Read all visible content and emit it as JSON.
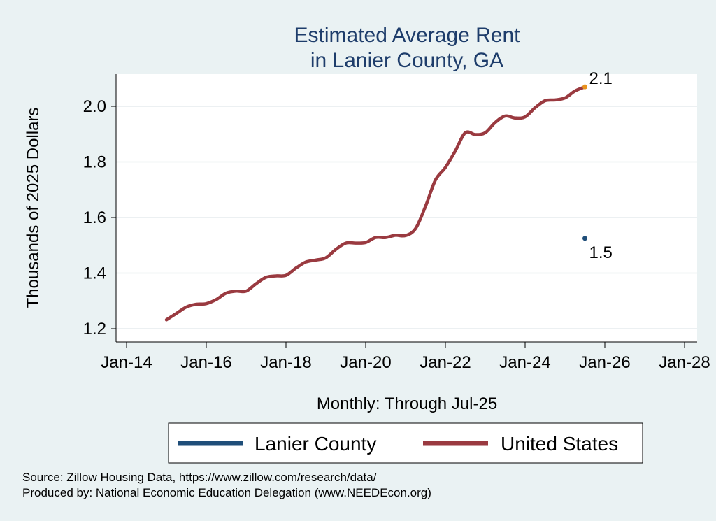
{
  "chart_data": {
    "type": "line",
    "title": [
      "Estimated Average Rent",
      "in Lanier County, GA"
    ],
    "xlabel": "Monthly: Through Jul-25",
    "ylabel": "Thousands of 2025 Dollars",
    "x_ticks": [
      "Jan-14",
      "Jan-16",
      "Jan-18",
      "Jan-20",
      "Jan-22",
      "Jan-24",
      "Jan-26",
      "Jan-28"
    ],
    "y_ticks": [
      "1.2",
      "1.4",
      "1.6",
      "1.8",
      "2.0"
    ],
    "xlim": [
      "Jan-14",
      "Jan-28"
    ],
    "ylim": [
      1.18,
      2.12
    ],
    "grid": "horizontal",
    "legend_position": "bottom",
    "series": [
      {
        "name": "Lanier County",
        "color": "#1f4e79",
        "points": [
          [
            "Jul-25",
            1.525
          ]
        ],
        "end_label": "1.5"
      },
      {
        "name": "United States",
        "color": "#9a3a40",
        "end_marker_color": "#e8921d",
        "end_label": "2.1",
        "points": [
          [
            "Jan-15",
            1.232
          ],
          [
            "Apr-15",
            1.255
          ],
          [
            "Jul-15",
            1.278
          ],
          [
            "Oct-15",
            1.288
          ],
          [
            "Jan-16",
            1.29
          ],
          [
            "Apr-16",
            1.305
          ],
          [
            "Jul-16",
            1.328
          ],
          [
            "Oct-16",
            1.335
          ],
          [
            "Jan-17",
            1.335
          ],
          [
            "Apr-17",
            1.362
          ],
          [
            "Jul-17",
            1.385
          ],
          [
            "Oct-17",
            1.39
          ],
          [
            "Jan-18",
            1.392
          ],
          [
            "Apr-18",
            1.418
          ],
          [
            "Jul-18",
            1.44
          ],
          [
            "Oct-18",
            1.447
          ],
          [
            "Jan-19",
            1.455
          ],
          [
            "Apr-19",
            1.485
          ],
          [
            "Jul-19",
            1.508
          ],
          [
            "Oct-19",
            1.508
          ],
          [
            "Jan-20",
            1.51
          ],
          [
            "Apr-20",
            1.528
          ],
          [
            "Jul-20",
            1.528
          ],
          [
            "Oct-20",
            1.536
          ],
          [
            "Jan-21",
            1.535
          ],
          [
            "Apr-21",
            1.56
          ],
          [
            "Jul-21",
            1.64
          ],
          [
            "Oct-21",
            1.735
          ],
          [
            "Jan-22",
            1.78
          ],
          [
            "Apr-22",
            1.84
          ],
          [
            "Jul-22",
            1.905
          ],
          [
            "Oct-22",
            1.898
          ],
          [
            "Jan-23",
            1.905
          ],
          [
            "Apr-23",
            1.942
          ],
          [
            "Jul-23",
            1.965
          ],
          [
            "Oct-23",
            1.958
          ],
          [
            "Jan-24",
            1.962
          ],
          [
            "Apr-24",
            1.995
          ],
          [
            "Jul-24",
            2.02
          ],
          [
            "Oct-24",
            2.023
          ],
          [
            "Jan-25",
            2.03
          ],
          [
            "Apr-25",
            2.055
          ],
          [
            "Jul-25",
            2.07
          ]
        ]
      }
    ]
  },
  "footer": {
    "source": "Source: Zillow Housing Data, https://www.zillow.com/research/data/",
    "produced_by": "Produced by: National Economic Education Delegation (www.NEEDEcon.org)"
  }
}
